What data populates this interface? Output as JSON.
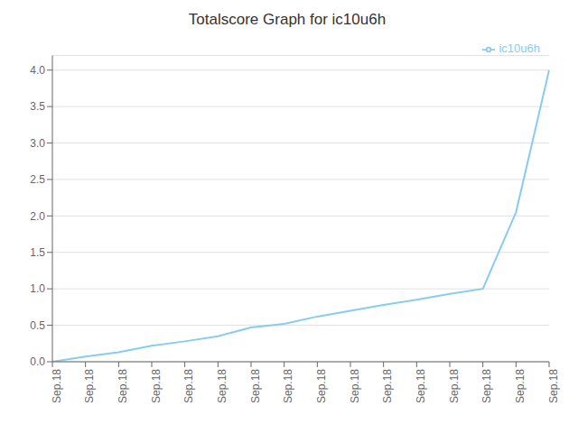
{
  "chart_data": {
    "type": "line",
    "title": "Totalscore Graph for ic10u6h",
    "categories": [
      "Sep.18",
      "Sep.18",
      "Sep.18",
      "Sep.18",
      "Sep.18",
      "Sep.18",
      "Sep.18",
      "Sep.18",
      "Sep.18",
      "Sep.18",
      "Sep.18",
      "Sep.18",
      "Sep.18",
      "Sep.18",
      "Sep.18",
      "Sep.18"
    ],
    "series": [
      {
        "name": "ic10u6h",
        "color": "#88ccee",
        "values": [
          0.0,
          0.07,
          0.13,
          0.22,
          0.28,
          0.35,
          0.47,
          0.52,
          0.62,
          0.7,
          0.78,
          0.85,
          0.93,
          1.0,
          2.05,
          4.0
        ]
      }
    ],
    "ylim": [
      0.0,
      4.2
    ],
    "yticks": [
      {
        "value": 0,
        "label": "0.0"
      },
      0.5,
      {
        "value": 1,
        "label": "1.0"
      },
      1.5,
      {
        "value": 2,
        "label": "2.0"
      },
      2.5,
      {
        "value": 3,
        "label": "3.0"
      },
      3.5,
      {
        "value": 4,
        "label": "4.0"
      }
    ],
    "grid": true,
    "legend": "upper right"
  }
}
